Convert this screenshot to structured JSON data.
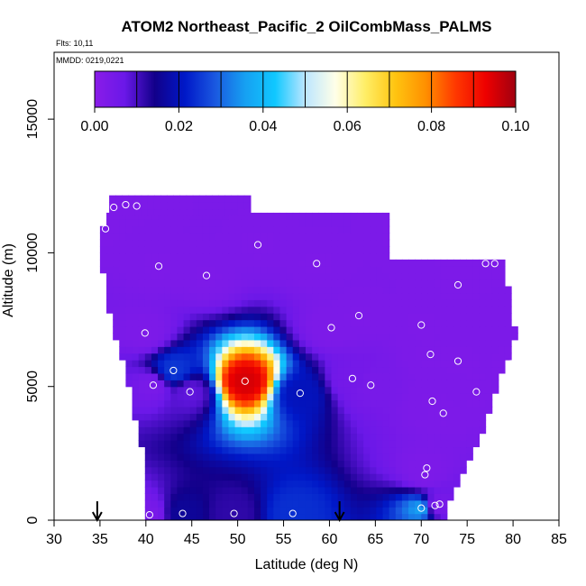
{
  "chart_data": {
    "type": "heatmap",
    "title": "ATOM2 Northeast_Pacific_2 OilCombMass_PALMS",
    "flights_text": "Flts: 10,11",
    "dates_text": "MMDD: 0219,0221",
    "xlabel": "Latitude (deg N)",
    "ylabel": "Altitude (m)",
    "xlim": [
      30,
      85
    ],
    "ylim": [
      0,
      17500
    ],
    "x_ticks": [
      30,
      35,
      40,
      45,
      50,
      55,
      60,
      65,
      70,
      75,
      80,
      85
    ],
    "y_ticks": [
      0,
      5000,
      10000,
      15000
    ],
    "colorbar": {
      "range": [
        0,
        0.1
      ],
      "tick_labels": [
        "0.00",
        "0.02",
        "0.04",
        "0.06",
        "0.08",
        "0.10"
      ],
      "tick_values": [
        0,
        0.02,
        0.04,
        0.06,
        0.08,
        0.1
      ],
      "stops": [
        "#8a1ce8",
        "#6a18e8",
        "#12008a",
        "#0018c8",
        "#1a58e0",
        "#16a0f2",
        "#10c8ff",
        "#bce6ff",
        "#ffffe8",
        "#ffee66",
        "#ffc410",
        "#ff9000",
        "#ff3800",
        "#ee0000",
        "#a00010"
      ]
    },
    "series": [
      {
        "values": [
          {
            "lat": 40.4,
            "alt": 200,
            "value": 0.004
          },
          {
            "lat": 44.0,
            "alt": 250,
            "value": 0.016
          },
          {
            "lat": 49.6,
            "alt": 250,
            "value": 0.012
          },
          {
            "lat": 56.0,
            "alt": 250,
            "value": 0.024
          },
          {
            "lat": 70.0,
            "alt": 450,
            "value": 0.036
          },
          {
            "lat": 71.5,
            "alt": 550,
            "value": 0.004
          },
          {
            "lat": 72.0,
            "alt": 600,
            "value": 0.004
          },
          {
            "lat": 70.4,
            "alt": 1700,
            "value": 0.003
          },
          {
            "lat": 70.6,
            "alt": 1950,
            "value": 0.003
          },
          {
            "lat": 72.4,
            "alt": 4000,
            "value": 0.003
          },
          {
            "lat": 71.2,
            "alt": 4450,
            "value": 0.003
          },
          {
            "lat": 76.0,
            "alt": 4800,
            "value": 0.003
          },
          {
            "lat": 79.8,
            "alt": 5850,
            "value": 0.003
          },
          {
            "lat": 74.0,
            "alt": 5950,
            "value": 0.003
          },
          {
            "lat": 71.0,
            "alt": 6200,
            "value": 0.003
          },
          {
            "lat": 70.0,
            "alt": 7300,
            "value": 0.003
          },
          {
            "lat": 74.0,
            "alt": 8800,
            "value": 0.003
          },
          {
            "lat": 77.0,
            "alt": 9600,
            "value": 0.003
          },
          {
            "lat": 78.0,
            "alt": 9600,
            "value": 0.003
          },
          {
            "lat": 74.0,
            "alt": 10000,
            "value": 0.003
          },
          {
            "lat": 68.0,
            "alt": 10650,
            "value": 0.003
          },
          {
            "lat": 64.5,
            "alt": 5050,
            "value": 0.004
          },
          {
            "lat": 62.5,
            "alt": 5300,
            "value": 0.005
          },
          {
            "lat": 63.2,
            "alt": 7650,
            "value": 0.003
          },
          {
            "lat": 60.2,
            "alt": 7200,
            "value": 0.003
          },
          {
            "lat": 58.6,
            "alt": 9600,
            "value": 0.003
          },
          {
            "lat": 52.2,
            "alt": 10300,
            "value": 0.003
          },
          {
            "lat": 46.6,
            "alt": 9150,
            "value": 0.003
          },
          {
            "lat": 41.4,
            "alt": 9500,
            "value": 0.003
          },
          {
            "lat": 39.9,
            "alt": 7000,
            "value": 0.003
          },
          {
            "lat": 43.0,
            "alt": 5600,
            "value": 0.025
          },
          {
            "lat": 40.8,
            "alt": 5050,
            "value": 0.004
          },
          {
            "lat": 44.8,
            "alt": 4800,
            "value": 0.008
          },
          {
            "lat": 50.8,
            "alt": 5200,
            "value": 0.095
          },
          {
            "lat": 56.8,
            "alt": 4750,
            "value": 0.02
          },
          {
            "lat": 35.6,
            "alt": 10900,
            "value": 0.003
          },
          {
            "lat": 36.5,
            "alt": 11700,
            "value": 0.003
          },
          {
            "lat": 37.8,
            "alt": 11800,
            "value": 0.003
          },
          {
            "lat": 39.0,
            "alt": 11750,
            "value": 0.003
          }
        ]
      }
    ],
    "arrows_at_lat": [
      34.7,
      61.1
    ]
  }
}
